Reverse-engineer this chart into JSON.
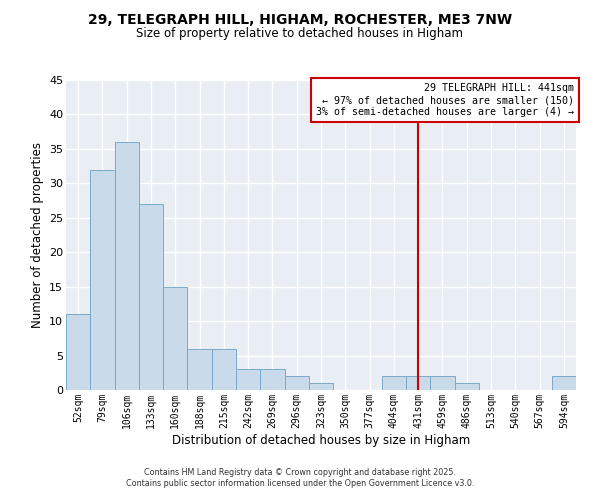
{
  "title_line1": "29, TELEGRAPH HILL, HIGHAM, ROCHESTER, ME3 7NW",
  "title_line2": "Size of property relative to detached houses in Higham",
  "xlabel": "Distribution of detached houses by size in Higham",
  "ylabel": "Number of detached properties",
  "bin_labels": [
    "52sqm",
    "79sqm",
    "106sqm",
    "133sqm",
    "160sqm",
    "188sqm",
    "215sqm",
    "242sqm",
    "269sqm",
    "296sqm",
    "323sqm",
    "350sqm",
    "377sqm",
    "404sqm",
    "431sqm",
    "459sqm",
    "486sqm",
    "513sqm",
    "540sqm",
    "567sqm",
    "594sqm"
  ],
  "bar_values": [
    11,
    32,
    36,
    27,
    15,
    6,
    6,
    3,
    3,
    2,
    1,
    0,
    0,
    2,
    2,
    2,
    1,
    0,
    0,
    0,
    2
  ],
  "bar_color": "#c9daea",
  "bar_edge_color": "#7aaac8",
  "bg_color": "#e8eef4",
  "grid_color": "#ffffff",
  "ylim": [
    0,
    45
  ],
  "yticks": [
    0,
    5,
    10,
    15,
    20,
    25,
    30,
    35,
    40,
    45
  ],
  "vline_x_index": 14,
  "vline_color": "#cc0000",
  "annotation_title": "29 TELEGRAPH HILL: 441sqm",
  "annotation_line2": "← 97% of detached houses are smaller (150)",
  "annotation_line3": "3% of semi-detached houses are larger (4) →",
  "annotation_box_color": "#cc0000",
  "footer_line1": "Contains HM Land Registry data © Crown copyright and database right 2025.",
  "footer_line2": "Contains public sector information licensed under the Open Government Licence v3.0."
}
